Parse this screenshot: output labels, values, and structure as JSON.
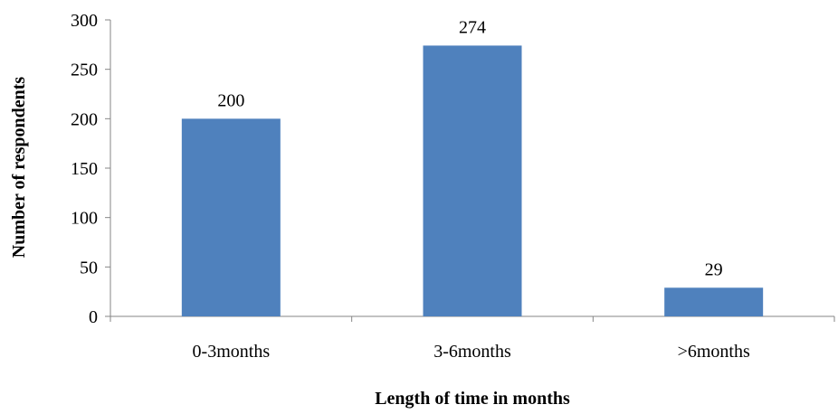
{
  "chart_data": {
    "type": "bar",
    "title": "",
    "xlabel": "Length of time in months",
    "ylabel": "Number of respondents",
    "categories": [
      "0-3months",
      "3-6months",
      ">6months"
    ],
    "values": [
      200,
      274,
      29
    ],
    "data_labels": [
      "200",
      "274",
      "29"
    ],
    "ylim": [
      0,
      300
    ],
    "yticks": [
      0,
      50,
      100,
      150,
      200,
      250,
      300
    ],
    "ytick_labels": [
      "0",
      "50",
      "100",
      "150",
      "200",
      "250",
      "300"
    ],
    "grid": false,
    "legend": "none",
    "bar_color": "#4F81BD"
  }
}
